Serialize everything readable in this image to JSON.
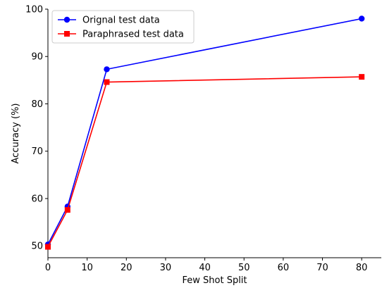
{
  "chart_data": {
    "type": "line",
    "title": "",
    "xlabel": "Few Shot Split",
    "ylabel": "Accuracy (%)",
    "xlim": [
      0,
      85
    ],
    "ylim": [
      47.5,
      100
    ],
    "xticks": [
      0,
      10,
      20,
      30,
      40,
      50,
      60,
      70,
      80
    ],
    "yticks": [
      50,
      60,
      70,
      80,
      90,
      100
    ],
    "grid": false,
    "legend_position": "top-left",
    "series": [
      {
        "name": "Orignal test data",
        "color": "#0000ff",
        "marker": "circle",
        "x": [
          0,
          5,
          15,
          80
        ],
        "y": [
          50.3,
          58.3,
          87.3,
          98.0
        ]
      },
      {
        "name": "Paraphrased test data",
        "color": "#ff0000",
        "marker": "square",
        "x": [
          0,
          5,
          15,
          80
        ],
        "y": [
          49.8,
          57.6,
          84.6,
          85.7
        ]
      }
    ]
  }
}
